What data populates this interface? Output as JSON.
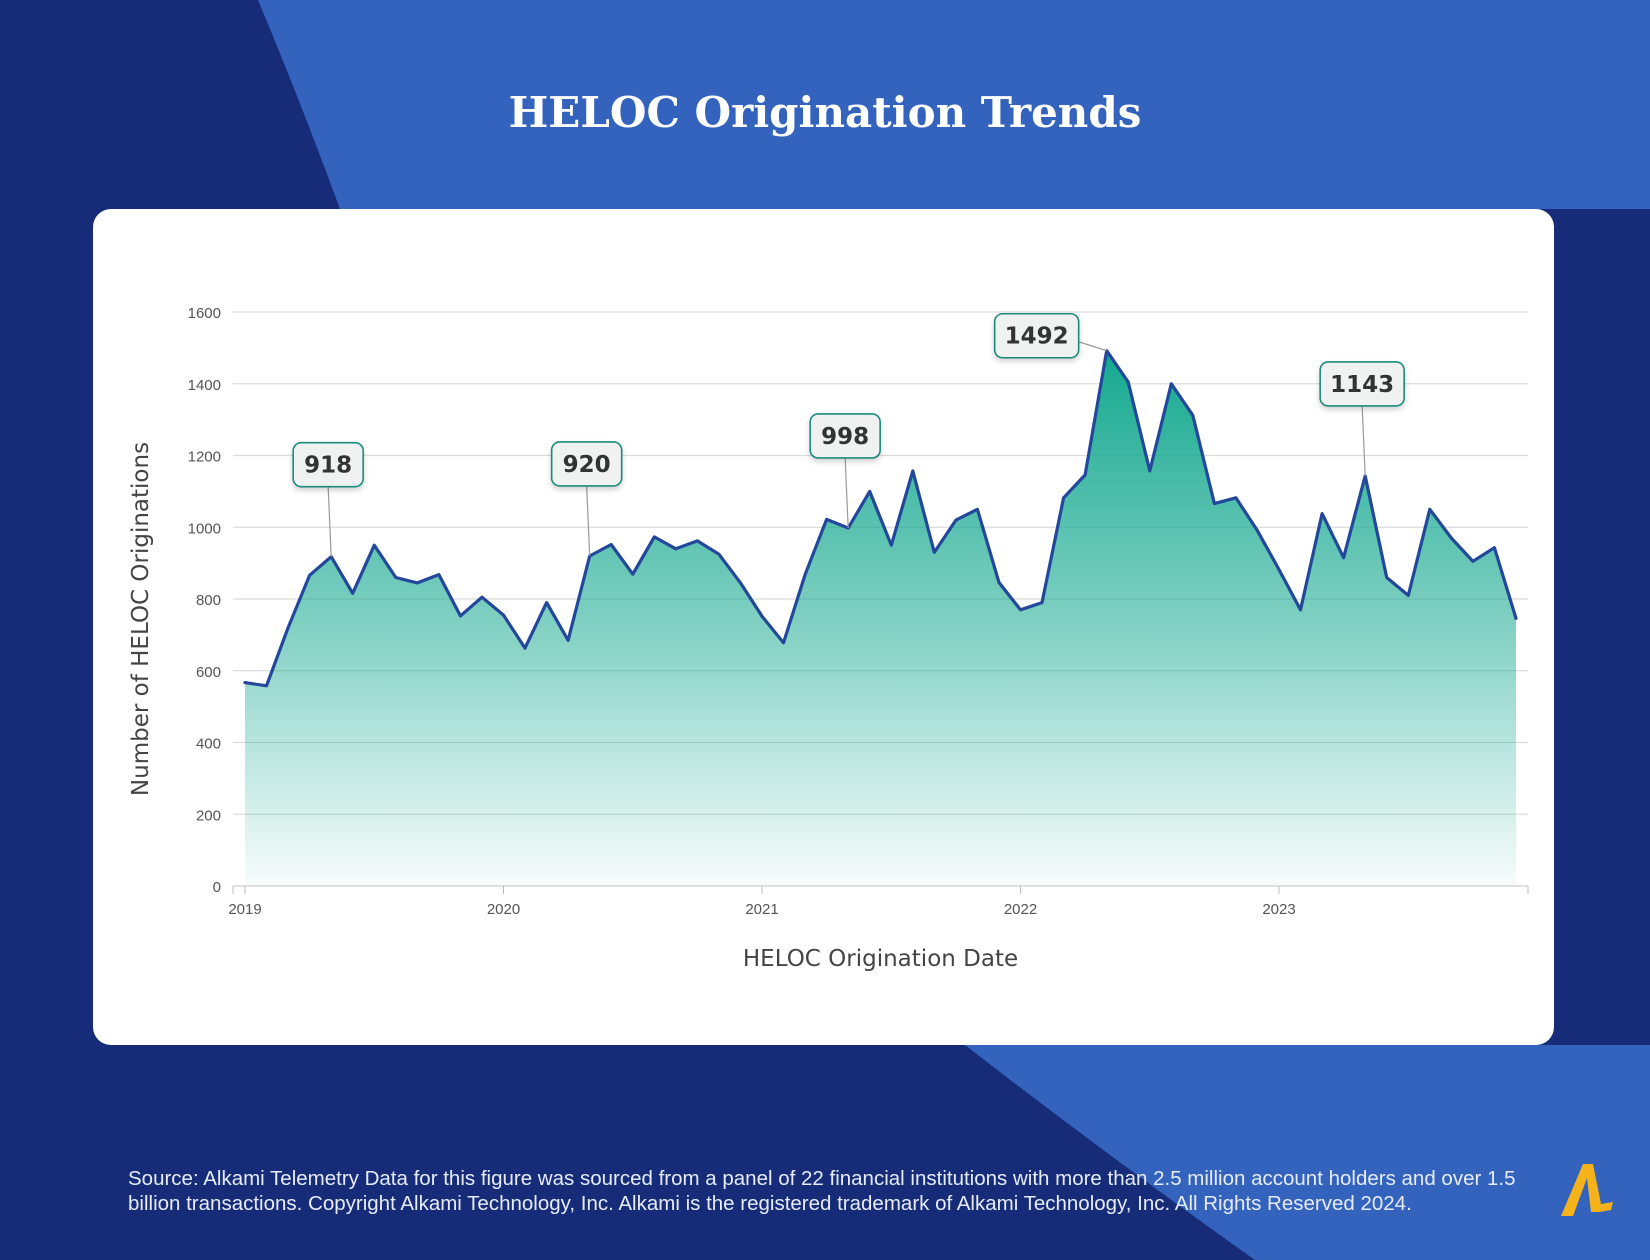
{
  "page": {
    "title": "HELOC Origination Trends",
    "source_note": "Source:  Alkami Telemetry Data for this figure was sourced from a panel of 22 financial institutions with more than 2.5 million account holders and over 1.5 billion transactions. Copyright Alkami Technology, Inc. Alkami is the registered trademark of Alkami Technology, Inc. All Rights Reserved 2024.",
    "logo_text": "A"
  },
  "colors": {
    "background_dark": "#172c78",
    "background_light": "#3463bd",
    "line": "#23479b",
    "fill_top": "#14a88f",
    "fill_bottom": "#ffffff",
    "callout_border": "#1e8a7b",
    "callout_fill": "#f0f1f1",
    "logo": "#f5b21b"
  },
  "chart_data": {
    "type": "area",
    "xlabel": "HELOC Origination Date",
    "ylabel": "Number of HELOC Originations",
    "x_ticks": [
      "2019",
      "2020",
      "2021",
      "2022",
      "2023"
    ],
    "y_ticks": [
      0,
      200,
      400,
      600,
      800,
      1000,
      1200,
      1400,
      1600
    ],
    "ylim": [
      0,
      1600
    ],
    "xlim": [
      "2019-01",
      "2023-12"
    ],
    "grid": true,
    "x": [
      "2019-01",
      "2019-02",
      "2019-03",
      "2019-04",
      "2019-05",
      "2019-06",
      "2019-07",
      "2019-08",
      "2019-09",
      "2019-10",
      "2019-11",
      "2019-12",
      "2020-01",
      "2020-02",
      "2020-03",
      "2020-04",
      "2020-05",
      "2020-06",
      "2020-07",
      "2020-08",
      "2020-09",
      "2020-10",
      "2020-11",
      "2020-12",
      "2021-01",
      "2021-02",
      "2021-03",
      "2021-04",
      "2021-05",
      "2021-06",
      "2021-07",
      "2021-08",
      "2021-09",
      "2021-10",
      "2021-11",
      "2021-12",
      "2022-01",
      "2022-02",
      "2022-03",
      "2022-04",
      "2022-05",
      "2022-06",
      "2022-07",
      "2022-08",
      "2022-09",
      "2022-10",
      "2022-11",
      "2022-12",
      "2023-01",
      "2023-02",
      "2023-03",
      "2023-04",
      "2023-05",
      "2023-06",
      "2023-07",
      "2023-08",
      "2023-09",
      "2023-10",
      "2023-11",
      "2023-12"
    ],
    "values": [
      567,
      558,
      720,
      866,
      918,
      816,
      950,
      860,
      845,
      868,
      753,
      805,
      755,
      663,
      790,
      685,
      920,
      952,
      869,
      973,
      940,
      962,
      925,
      845,
      752,
      678,
      868,
      1022,
      998,
      1100,
      950,
      1157,
      930,
      1020,
      1050,
      846,
      770,
      790,
      1082,
      1146,
      1492,
      1405,
      1157,
      1400,
      1312,
      1066,
      1082,
      990,
      882,
      770,
      1038,
      915,
      1143,
      860,
      810,
      1050,
      970,
      905,
      943,
      746
    ],
    "annotations": [
      {
        "x": "2019-05",
        "value": 918,
        "label": "918"
      },
      {
        "x": "2020-05",
        "value": 920,
        "label": "920"
      },
      {
        "x": "2021-05",
        "value": 998,
        "label": "998"
      },
      {
        "x": "2022-05",
        "value": 1492,
        "label": "1492"
      },
      {
        "x": "2023-05",
        "value": 1143,
        "label": "1143"
      }
    ]
  }
}
